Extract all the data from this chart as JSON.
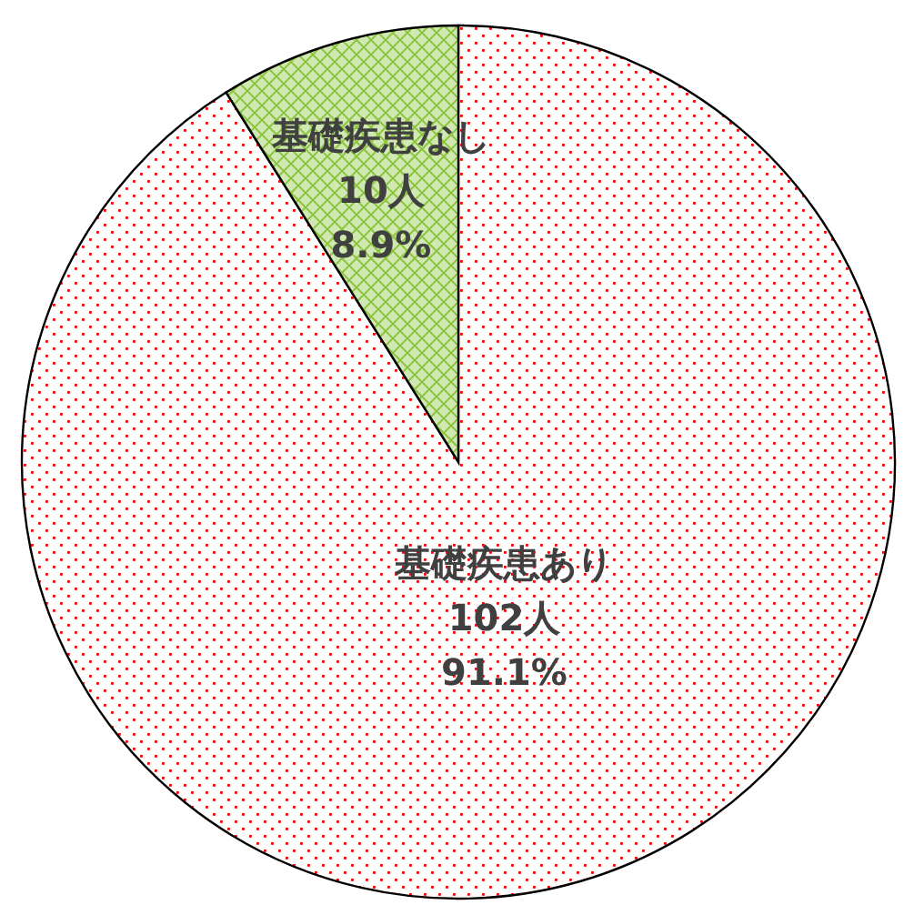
{
  "chart_data": {
    "type": "pie",
    "categories": [
      "基礎疾患あり",
      "基礎疾患なし"
    ],
    "values": [
      102,
      10
    ],
    "colors": [
      "#ff0000",
      "#8cc63f"
    ],
    "value_labels": [
      "102人\n91.1%",
      "10人\n8.9%"
    ]
  }
}
